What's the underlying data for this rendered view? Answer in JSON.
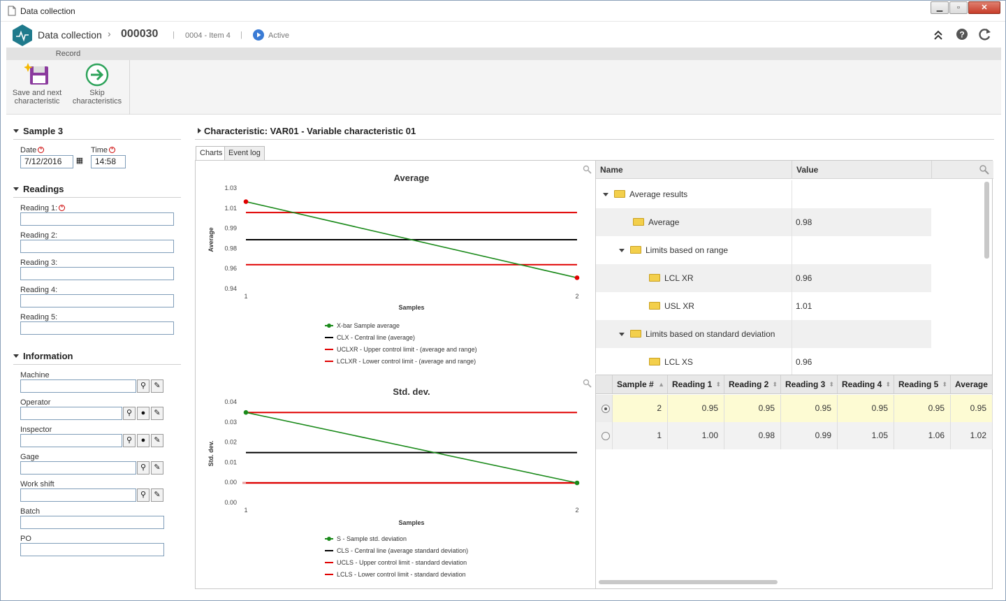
{
  "window": {
    "title": "Data collection",
    "controls": [
      "minimize",
      "maximize",
      "close"
    ]
  },
  "header": {
    "module": "Data collection",
    "record_id": "000030",
    "item": "0004 - Item 4",
    "status": "Active",
    "status_color": "#3a7bd5",
    "logo_color": "#1f7a8c"
  },
  "ribbon": {
    "group_label": "Record",
    "save_next": {
      "line1": "Save and next",
      "line2": "characteristic"
    },
    "skip": {
      "line1": "Skip",
      "line2": "characteristics"
    }
  },
  "sample": {
    "title": "Sample 3",
    "date_label": "Date",
    "date_value": "7/12/2016",
    "time_label": "Time",
    "time_value": "14:58"
  },
  "readings": {
    "title": "Readings",
    "fields": [
      "Reading 1:",
      "Reading 2:",
      "Reading 3:",
      "Reading 4:",
      "Reading 5:"
    ]
  },
  "information": {
    "title": "Information",
    "fields": [
      "Machine",
      "Operator",
      "Inspector",
      "Gage",
      "Work shift",
      "Batch",
      "PO"
    ]
  },
  "characteristic": {
    "title": "Characteristic: VAR01 - Variable characteristic 01"
  },
  "tabs": [
    "Charts",
    "Event log"
  ],
  "results_table": {
    "headers": [
      "Name",
      "Value"
    ],
    "rows": [
      {
        "name": "Average results",
        "value": ""
      },
      {
        "name": "Average",
        "value": "0.98"
      },
      {
        "name": "Limits based on range",
        "value": ""
      },
      {
        "name": "LCL XR",
        "value": "0.96"
      },
      {
        "name": "USL XR",
        "value": "1.01"
      },
      {
        "name": "Limits based on standard deviation",
        "value": ""
      },
      {
        "name": "LCL XS",
        "value": "0.96"
      }
    ]
  },
  "samples_table": {
    "headers": [
      "Sample #",
      "Reading 1",
      "Reading 2",
      "Reading 3",
      "Reading 4",
      "Reading 5",
      "Average"
    ],
    "rows": [
      [
        "2",
        "0.95",
        "0.95",
        "0.95",
        "0.95",
        "0.95",
        "0.95"
      ],
      [
        "1",
        "1.00",
        "0.98",
        "0.99",
        "1.05",
        "1.06",
        "1.02"
      ]
    ]
  },
  "chart_data": [
    {
      "type": "line",
      "title": "Average",
      "xlabel": "Samples",
      "ylabel": "Average",
      "x": [
        1,
        2
      ],
      "x_ticks": [
        "1",
        "2"
      ],
      "y_ticks": [
        "0.94",
        "0.96",
        "0.98",
        "0.99",
        "1.01",
        "1.03"
      ],
      "ylim": [
        0.94,
        1.03
      ],
      "series": [
        {
          "name": "X-bar Sample average",
          "color": "#1a8a1a",
          "values": [
            1.02,
            0.95
          ]
        },
        {
          "name": "CLX - Central line (average)",
          "color": "#000000",
          "values": [
            0.985,
            0.985
          ]
        },
        {
          "name": "UCLXR - Upper control limit - (average and range)",
          "color": "#e00000",
          "values": [
            1.01,
            1.01
          ]
        },
        {
          "name": "LCLXR - Lower control limit - (average and range)",
          "color": "#e00000",
          "values": [
            0.962,
            0.962
          ]
        }
      ]
    },
    {
      "type": "line",
      "title": "Std. dev.",
      "xlabel": "Samples",
      "ylabel": "Std. dev.",
      "x": [
        1,
        2
      ],
      "x_ticks": [
        "1",
        "2"
      ],
      "y_ticks": [
        "0.00",
        "0.00",
        "0.01",
        "0.02",
        "0.03",
        "0.04"
      ],
      "ylim": [
        -0.01,
        0.04
      ],
      "series": [
        {
          "name": "S - Sample std. deviation",
          "color": "#1a8a1a",
          "values": [
            0.036,
            0.0
          ]
        },
        {
          "name": "CLS - Central line (average standard deviation)",
          "color": "#000000",
          "values": [
            0.0155,
            0.0155
          ]
        },
        {
          "name": "UCLS - Upper control limit - standard deviation",
          "color": "#e00000",
          "values": [
            0.036,
            0.036
          ]
        },
        {
          "name": "LCLS - Lower control limit - standard deviation",
          "color": "#e00000",
          "values": [
            0.0,
            0.0
          ]
        }
      ]
    }
  ]
}
